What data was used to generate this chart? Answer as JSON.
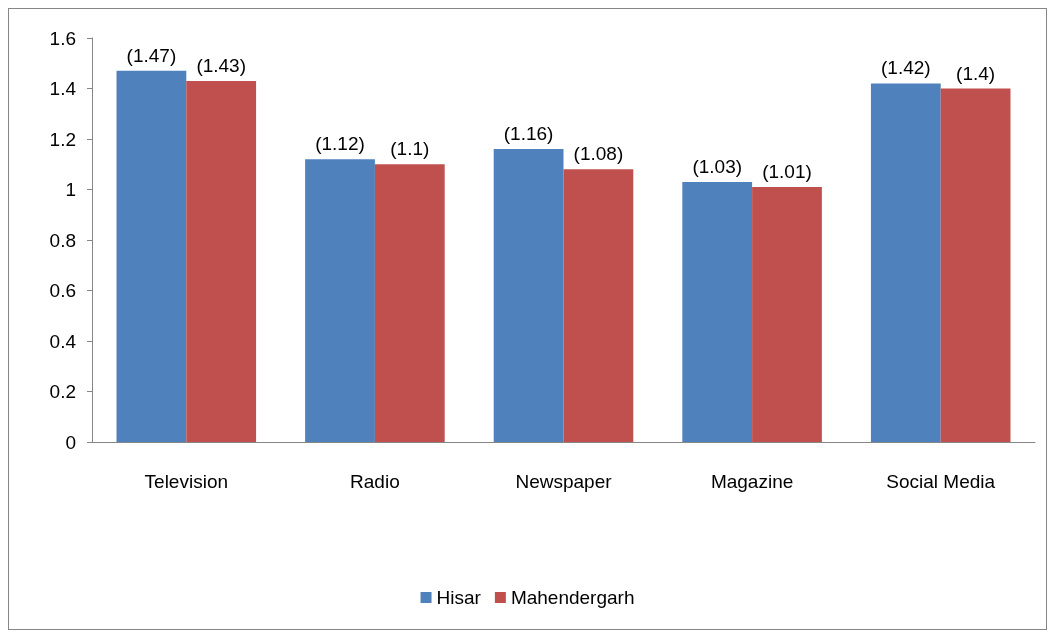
{
  "chart_data": {
    "type": "bar",
    "categories": [
      "Television",
      "Radio",
      "Newspaper",
      "Magazine",
      "Social Media"
    ],
    "series": [
      {
        "name": "Hisar",
        "color": "#4f81bd",
        "values": [
          1.47,
          1.12,
          1.16,
          1.03,
          1.42
        ],
        "value_labels": [
          "(1.47)",
          "(1.12)",
          "(1.16)",
          "(1.03)",
          "(1.42)"
        ]
      },
      {
        "name": "Mahendergarh",
        "color": "#c0504d",
        "values": [
          1.43,
          1.1,
          1.08,
          1.01,
          1.4
        ],
        "value_labels": [
          "(1.43)",
          "(1.1)",
          "(1.08)",
          "(1.01)",
          "(1.4)"
        ]
      }
    ],
    "ylim": [
      0,
      1.6
    ],
    "yticks": [
      0,
      0.2,
      0.4,
      0.6,
      0.8,
      1,
      1.2,
      1.4,
      1.6
    ],
    "grid": false,
    "legend": "bottom"
  }
}
